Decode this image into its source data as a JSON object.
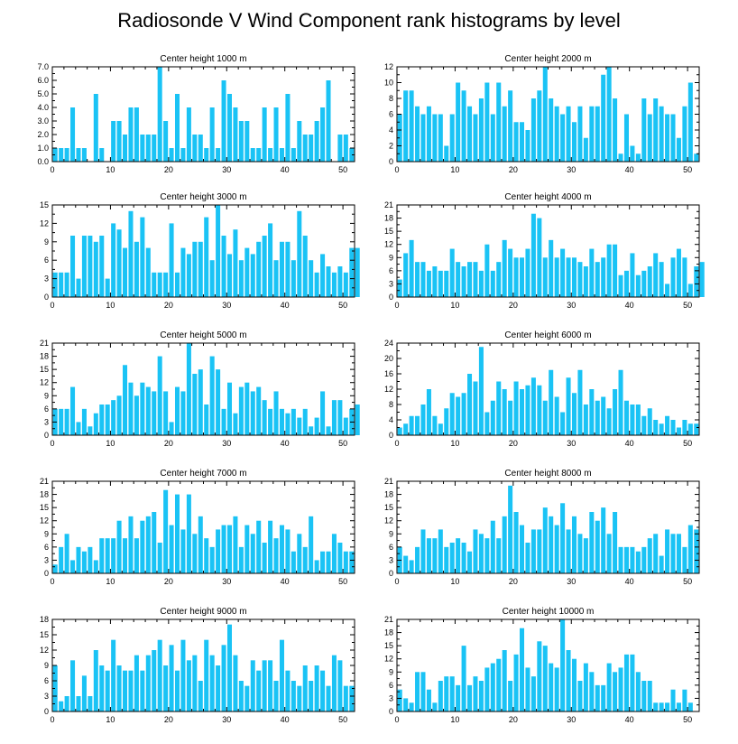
{
  "title": "Radiosonde V Wind Component rank histograms by level",
  "colors": {
    "bar": "#1ac3f5",
    "axis": "#000000",
    "background": "#ffffff"
  },
  "chart_data": [
    {
      "type": "bar",
      "title": "Center height 1000 m",
      "xlim": [
        0,
        52
      ],
      "ylim": [
        0,
        7
      ],
      "xticks": [
        0,
        10,
        20,
        30,
        40,
        50
      ],
      "yticks": [
        0,
        1,
        2,
        3,
        4,
        5,
        6,
        7
      ],
      "ytick_labels": [
        "0.0",
        "1.0",
        "2.0",
        "3.0",
        "4.0",
        "5.0",
        "6.0",
        "7.0"
      ],
      "values": [
        1,
        1,
        1,
        4,
        1,
        1,
        0,
        5,
        1,
        0,
        3,
        3,
        2,
        4,
        4,
        2,
        2,
        2,
        7,
        3,
        1,
        5,
        1,
        4,
        2,
        2,
        1,
        4,
        1,
        6,
        5,
        4,
        3,
        3,
        1,
        1,
        4,
        1,
        4,
        1,
        5,
        1,
        3,
        2,
        2,
        3,
        4,
        6,
        0,
        2,
        2,
        1
      ]
    },
    {
      "type": "bar",
      "title": "Center height 2000 m",
      "xlim": [
        0,
        52
      ],
      "ylim": [
        0,
        12
      ],
      "xticks": [
        0,
        10,
        20,
        30,
        40,
        50
      ],
      "yticks": [
        0,
        2,
        4,
        6,
        8,
        10,
        12
      ],
      "ytick_labels": [
        "0",
        "2",
        "4",
        "6",
        "8",
        "10",
        "12"
      ],
      "values": [
        6,
        9,
        9,
        7,
        6,
        7,
        6,
        6,
        2,
        6,
        10,
        9,
        7,
        6,
        8,
        10,
        6,
        10,
        7,
        9,
        5,
        5,
        4,
        8,
        9,
        12,
        8,
        7,
        6,
        7,
        5,
        7,
        3,
        7,
        7,
        11,
        12,
        8,
        1,
        6,
        2,
        1,
        8,
        6,
        8,
        7,
        6,
        6,
        3,
        7,
        10,
        1
      ]
    },
    {
      "type": "bar",
      "title": "Center height 3000 m",
      "xlim": [
        0,
        52
      ],
      "ylim": [
        0,
        15
      ],
      "xticks": [
        0,
        10,
        20,
        30,
        40,
        50
      ],
      "yticks": [
        0,
        3,
        6,
        9,
        12,
        15
      ],
      "ytick_labels": [
        "0",
        "3",
        "6",
        "9",
        "12",
        "15"
      ],
      "values": [
        4,
        4,
        4,
        10,
        3,
        10,
        10,
        9,
        10,
        3,
        12,
        11,
        8,
        14,
        9,
        13,
        8,
        4,
        4,
        4,
        12,
        4,
        8,
        7,
        9,
        9,
        13,
        6,
        15,
        10,
        7,
        11,
        6,
        8,
        7,
        9,
        10,
        12,
        6,
        9,
        9,
        6,
        14,
        10,
        6,
        4,
        7,
        5,
        4,
        5,
        4,
        8,
        8
      ]
    },
    {
      "type": "bar",
      "title": "Center height 4000 m",
      "xlim": [
        0,
        52
      ],
      "ylim": [
        0,
        21
      ],
      "xticks": [
        0,
        10,
        20,
        30,
        40,
        50
      ],
      "yticks": [
        0,
        3,
        6,
        9,
        12,
        15,
        18,
        21
      ],
      "ytick_labels": [
        "0",
        "3",
        "6",
        "9",
        "12",
        "15",
        "18",
        "21"
      ],
      "values": [
        4,
        10,
        13,
        8,
        8,
        6,
        7,
        6,
        6,
        11,
        8,
        7,
        8,
        8,
        6,
        12,
        6,
        8,
        13,
        11,
        9,
        9,
        11,
        19,
        18,
        9,
        13,
        9,
        11,
        9,
        9,
        8,
        7,
        11,
        8,
        9,
        12,
        12,
        5,
        6,
        10,
        5,
        6,
        7,
        10,
        8,
        3,
        9,
        11,
        9,
        3,
        7,
        8
      ]
    },
    {
      "type": "bar",
      "title": "Center height 5000 m",
      "xlim": [
        0,
        52
      ],
      "ylim": [
        0,
        21
      ],
      "xticks": [
        0,
        10,
        20,
        30,
        40,
        50
      ],
      "yticks": [
        0,
        3,
        6,
        9,
        12,
        15,
        18,
        21
      ],
      "ytick_labels": [
        "0",
        "3",
        "6",
        "9",
        "12",
        "15",
        "18",
        "21"
      ],
      "values": [
        6,
        6,
        6,
        11,
        3,
        6,
        2,
        5,
        7,
        7,
        8,
        9,
        16,
        12,
        9,
        12,
        11,
        10,
        18,
        10,
        3,
        11,
        10,
        21,
        14,
        15,
        7,
        18,
        15,
        6,
        12,
        5,
        11,
        12,
        10,
        11,
        8,
        6,
        10,
        6,
        5,
        6,
        4,
        6,
        2,
        4,
        10,
        2,
        8,
        8,
        4,
        6,
        7
      ]
    },
    {
      "type": "bar",
      "title": "Center height 6000 m",
      "xlim": [
        0,
        52
      ],
      "ylim": [
        0,
        24
      ],
      "xticks": [
        0,
        10,
        20,
        30,
        40,
        50
      ],
      "yticks": [
        0,
        4,
        8,
        12,
        16,
        20,
        24
      ],
      "ytick_labels": [
        "0",
        "4",
        "8",
        "12",
        "16",
        "20",
        "24"
      ],
      "values": [
        2,
        3,
        5,
        5,
        8,
        12,
        5,
        3,
        7,
        11,
        10,
        11,
        16,
        14,
        23,
        6,
        9,
        14,
        12,
        9,
        14,
        12,
        13,
        15,
        13,
        9,
        17,
        10,
        6,
        15,
        11,
        17,
        8,
        12,
        9,
        10,
        7,
        12,
        17,
        9,
        8,
        8,
        5,
        7,
        4,
        3,
        5,
        4,
        2,
        4,
        3,
        3
      ]
    },
    {
      "type": "bar",
      "title": "Center height 7000 m",
      "xlim": [
        0,
        52
      ],
      "ylim": [
        0,
        21
      ],
      "xticks": [
        0,
        10,
        20,
        30,
        40,
        50
      ],
      "yticks": [
        0,
        3,
        6,
        9,
        12,
        15,
        18,
        21
      ],
      "ytick_labels": [
        "0",
        "3",
        "6",
        "9",
        "12",
        "15",
        "18",
        "21"
      ],
      "values": [
        2,
        6,
        9,
        3,
        6,
        5,
        6,
        3,
        8,
        8,
        8,
        12,
        8,
        13,
        8,
        12,
        13,
        14,
        7,
        19,
        11,
        18,
        10,
        18,
        9,
        13,
        8,
        6,
        10,
        11,
        11,
        13,
        6,
        11,
        9,
        12,
        7,
        12,
        8,
        11,
        10,
        5,
        9,
        6,
        13,
        3,
        5,
        5,
        9,
        7,
        5,
        5
      ]
    },
    {
      "type": "bar",
      "title": "Center height 8000 m",
      "xlim": [
        0,
        52
      ],
      "ylim": [
        0,
        21
      ],
      "xticks": [
        0,
        10,
        20,
        30,
        40,
        50
      ],
      "yticks": [
        0,
        3,
        6,
        9,
        12,
        15,
        18,
        21
      ],
      "ytick_labels": [
        "0",
        "3",
        "6",
        "9",
        "12",
        "15",
        "18",
        "21"
      ],
      "values": [
        6,
        4,
        3,
        6,
        10,
        8,
        8,
        10,
        6,
        7,
        8,
        7,
        5,
        10,
        9,
        8,
        12,
        8,
        13,
        20,
        14,
        11,
        7,
        10,
        10,
        15,
        13,
        11,
        16,
        10,
        13,
        9,
        8,
        14,
        12,
        15,
        9,
        14,
        6,
        6,
        6,
        5,
        6,
        8,
        9,
        4,
        10,
        9,
        9,
        6,
        11,
        10
      ]
    },
    {
      "type": "bar",
      "title": "Center height 9000 m",
      "xlim": [
        0,
        52
      ],
      "ylim": [
        0,
        18
      ],
      "xticks": [
        0,
        10,
        20,
        30,
        40,
        50
      ],
      "yticks": [
        0,
        3,
        6,
        9,
        12,
        15,
        18
      ],
      "ytick_labels": [
        "0",
        "3",
        "6",
        "9",
        "12",
        "15",
        "18"
      ],
      "values": [
        9,
        2,
        3,
        10,
        3,
        7,
        3,
        12,
        9,
        8,
        14,
        9,
        8,
        8,
        11,
        8,
        11,
        12,
        14,
        9,
        13,
        8,
        14,
        10,
        11,
        6,
        14,
        11,
        9,
        13,
        17,
        11,
        6,
        5,
        10,
        8,
        10,
        10,
        6,
        14,
        8,
        6,
        5,
        9,
        6,
        9,
        8,
        5,
        11,
        10,
        5,
        5
      ]
    },
    {
      "type": "bar",
      "title": "Center height 10000 m",
      "xlim": [
        0,
        52
      ],
      "ylim": [
        0,
        21
      ],
      "xticks": [
        0,
        10,
        20,
        30,
        40,
        50
      ],
      "yticks": [
        0,
        3,
        6,
        9,
        12,
        15,
        18,
        21
      ],
      "ytick_labels": [
        "0",
        "3",
        "6",
        "9",
        "12",
        "15",
        "18",
        "21"
      ],
      "values": [
        5,
        3,
        2,
        9,
        9,
        5,
        2,
        7,
        8,
        8,
        6,
        15,
        6,
        8,
        7,
        10,
        11,
        12,
        14,
        7,
        13,
        19,
        10,
        8,
        16,
        15,
        11,
        10,
        21,
        14,
        12,
        7,
        11,
        9,
        6,
        6,
        11,
        9,
        10,
        13,
        13,
        9,
        7,
        7,
        2,
        2,
        2,
        5,
        2,
        5,
        2
      ]
    }
  ]
}
